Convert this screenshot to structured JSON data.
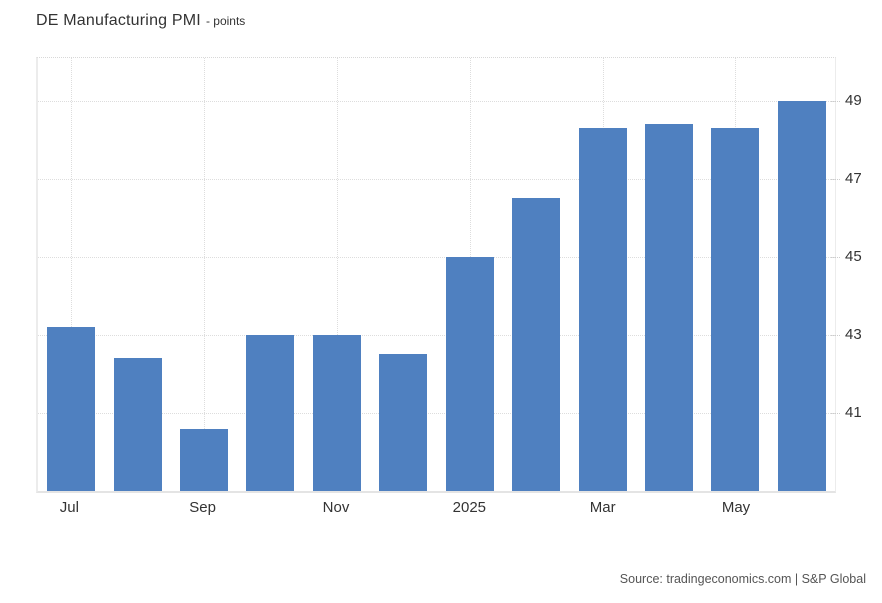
{
  "header": {
    "title": "DE Manufacturing PMI",
    "subtitle": "- points"
  },
  "footer": {
    "source": "Source: tradingeconomics.com | S&P Global"
  },
  "chart_data": {
    "type": "bar",
    "title": "DE Manufacturing PMI",
    "unit": "points",
    "categories": [
      "Jul 2024",
      "Aug 2024",
      "Sep 2024",
      "Oct 2024",
      "Nov 2024",
      "Dec 2024",
      "Jan 2025",
      "Feb 2025",
      "Mar 2025",
      "Apr 2025",
      "May 2025",
      "Jun 2025"
    ],
    "values": [
      43.2,
      42.4,
      40.6,
      43.0,
      43.0,
      42.5,
      45.0,
      46.5,
      48.3,
      48.4,
      48.3,
      49.0
    ],
    "x_tick_labels": [
      {
        "index": 0,
        "label": "Jul"
      },
      {
        "index": 2,
        "label": "Sep"
      },
      {
        "index": 4,
        "label": "Nov"
      },
      {
        "index": 6,
        "label": "2025"
      },
      {
        "index": 8,
        "label": "Mar"
      },
      {
        "index": 10,
        "label": "May"
      }
    ],
    "y_ticks": [
      41,
      43,
      45,
      47,
      49
    ],
    "ylim": [
      39,
      50.1
    ],
    "grid": true,
    "legend": false,
    "bar_color": "#4f80c0",
    "gridline_color": "#dddddd"
  }
}
